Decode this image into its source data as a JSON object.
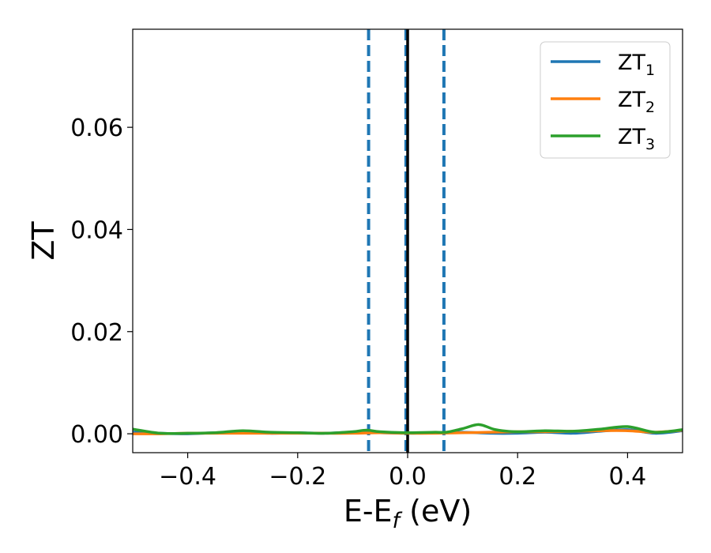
{
  "chart_data": {
    "type": "line",
    "xlabel": "E-E",
    "xlabel_sub": "f",
    "xlabel_unit": "(eV)",
    "ylabel": "ZT",
    "xlim": [
      -0.5,
      0.5
    ],
    "ylim": [
      -0.0037,
      0.0792
    ],
    "grid": false,
    "legend_position": "top-right",
    "x_ticks": [
      -0.4,
      -0.2,
      0.0,
      0.2,
      0.4
    ],
    "x_tick_labels": [
      "−0.4",
      "−0.2",
      "0.0",
      "0.2",
      "0.4"
    ],
    "y_ticks": [
      0.0,
      0.02,
      0.04,
      0.06
    ],
    "y_tick_labels": [
      "0.00",
      "0.02",
      "0.04",
      "0.06"
    ],
    "vertical_lines": [
      {
        "x": -0.071,
        "style": "dashed",
        "color": "#1f77b4"
      },
      {
        "x": -0.003,
        "style": "dashed",
        "color": "#1f77b4"
      },
      {
        "x": 0.066,
        "style": "dashed",
        "color": "#1f77b4"
      },
      {
        "x": 0.0,
        "style": "solid",
        "color": "#000000"
      }
    ],
    "series": [
      {
        "name": "ZT",
        "subscript": "1",
        "color": "#1f77b4",
        "x": [
          -0.5,
          -0.45,
          -0.4,
          -0.35,
          -0.3,
          -0.25,
          -0.2,
          -0.15,
          -0.1,
          -0.05,
          0.0,
          0.05,
          0.1,
          0.15,
          0.2,
          0.25,
          0.3,
          0.35,
          0.4,
          0.45,
          0.5
        ],
        "y": [
          0.0003,
          0.0001,
          0.0,
          0.0002,
          0.0003,
          0.0001,
          0.0002,
          0.0001,
          0.0003,
          0.0002,
          0.0001,
          0.0002,
          0.0003,
          0.0001,
          0.0001,
          0.0003,
          0.0001,
          0.0005,
          0.0008,
          0.0001,
          0.0006
        ]
      },
      {
        "name": "ZT",
        "subscript": "2",
        "color": "#ff7f0e",
        "x": [
          -0.5,
          -0.45,
          -0.4,
          -0.35,
          -0.3,
          -0.25,
          -0.2,
          -0.15,
          -0.1,
          -0.05,
          0.0,
          0.05,
          0.1,
          0.15,
          0.2,
          0.25,
          0.3,
          0.35,
          0.4,
          0.45,
          0.5
        ],
        "y": [
          0.0,
          0.0,
          0.0001,
          0.0001,
          0.0001,
          0.0001,
          0.0001,
          0.0001,
          0.0001,
          0.0002,
          0.0001,
          0.0001,
          0.0002,
          0.0003,
          0.0004,
          0.0004,
          0.0005,
          0.0006,
          0.0006,
          0.0003,
          0.0007
        ]
      },
      {
        "name": "ZT",
        "subscript": "3",
        "color": "#2ca02c",
        "x": [
          -0.5,
          -0.45,
          -0.4,
          -0.35,
          -0.3,
          -0.25,
          -0.2,
          -0.15,
          -0.1,
          -0.075,
          -0.05,
          0.0,
          0.05,
          0.07,
          0.1,
          0.13,
          0.16,
          0.2,
          0.25,
          0.3,
          0.35,
          0.4,
          0.45,
          0.5
        ],
        "y": [
          0.0009,
          0.0001,
          0.0001,
          0.0002,
          0.0006,
          0.0003,
          0.0002,
          0.0001,
          0.0004,
          0.0007,
          0.0004,
          0.0002,
          0.0003,
          0.0003,
          0.001,
          0.0018,
          0.0008,
          0.0004,
          0.0006,
          0.0005,
          0.0009,
          0.0014,
          0.0003,
          0.0008
        ]
      }
    ]
  }
}
